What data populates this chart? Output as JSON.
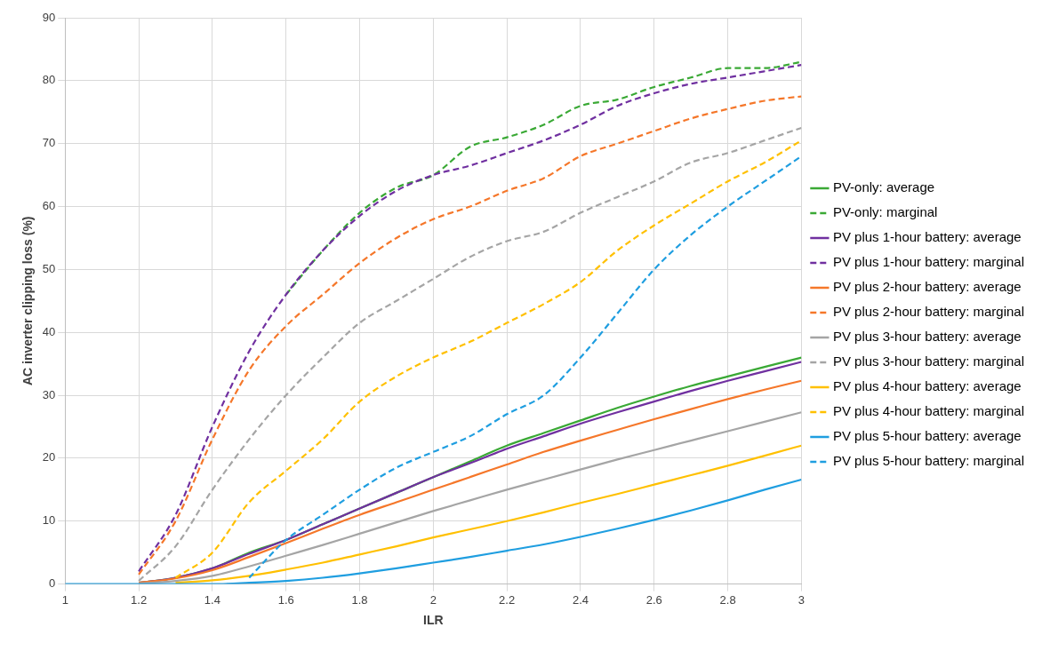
{
  "chart_data": {
    "type": "line",
    "xlabel": "ILR",
    "ylabel": "AC inverter clipping loss (%)",
    "x": [
      1,
      1.1,
      1.2,
      1.3,
      1.4,
      1.5,
      1.6,
      1.7,
      1.8,
      1.9,
      2,
      2.1,
      2.2,
      2.3,
      2.4,
      2.5,
      2.6,
      2.7,
      2.8,
      2.9,
      3
    ],
    "xlim": [
      1,
      3
    ],
    "xticks": [
      1,
      1.2,
      1.4,
      1.6,
      1.8,
      2,
      2.2,
      2.4,
      2.6,
      2.8,
      3
    ],
    "ylim": [
      0,
      90
    ],
    "yticks": [
      0,
      10,
      20,
      30,
      40,
      50,
      60,
      70,
      80,
      90
    ],
    "grid": true,
    "legend": "right",
    "marker": "none",
    "series": [
      {
        "name": "PV-only: average",
        "color": "#3aa935",
        "line_style": "solid",
        "values": [
          null,
          null,
          0.2,
          1,
          2.5,
          5,
          7,
          9.5,
          12,
          14.5,
          17,
          19.5,
          22,
          24,
          26,
          28,
          29.8,
          31.5,
          33,
          34.5,
          36
        ]
      },
      {
        "name": "PV-only: marginal",
        "color": "#3aa935",
        "line_style": "dashed",
        "values": [
          null,
          null,
          null,
          null,
          null,
          null,
          46,
          53,
          59,
          63,
          65,
          69.5,
          71,
          73,
          76,
          77,
          79,
          80.5,
          82,
          82,
          83
        ]
      },
      {
        "name": "PV plus 1-hour battery: average",
        "color": "#7030a0",
        "line_style": "solid",
        "values": [
          null,
          null,
          0.2,
          1,
          2.5,
          4.8,
          7,
          9.5,
          12,
          14.5,
          17,
          19.2,
          21.5,
          23.5,
          25.5,
          27.3,
          29,
          30.7,
          32.3,
          33.8,
          35.3
        ]
      },
      {
        "name": "PV plus 1-hour battery: marginal",
        "color": "#7030a0",
        "line_style": "dashed",
        "values": [
          null,
          null,
          2,
          11,
          25,
          37,
          46,
          53,
          58.5,
          62.5,
          65,
          66.5,
          68.5,
          70.5,
          73,
          76,
          78,
          79.5,
          80.5,
          81.5,
          82.5
        ]
      },
      {
        "name": "PV plus 2-hour battery: average",
        "color": "#f5772a",
        "line_style": "solid",
        "values": [
          null,
          null,
          0.2,
          0.9,
          2.2,
          4.3,
          6.5,
          8.8,
          11,
          13,
          15,
          17,
          19,
          21,
          22.8,
          24.5,
          26.2,
          27.8,
          29.4,
          30.9,
          32.3
        ]
      },
      {
        "name": "PV plus 2-hour battery: marginal",
        "color": "#f5772a",
        "line_style": "dashed",
        "values": [
          null,
          null,
          1.5,
          10,
          23,
          34,
          41,
          46,
          51,
          55,
          58,
          60,
          62.5,
          64.5,
          68,
          70,
          72,
          74,
          75.5,
          76.8,
          77.5
        ]
      },
      {
        "name": "PV plus 3-hour battery: average",
        "color": "#a5a5a5",
        "line_style": "solid",
        "values": [
          null,
          null,
          0.1,
          0.5,
          1.3,
          2.8,
          4.5,
          6.2,
          8,
          9.8,
          11.6,
          13.3,
          15,
          16.6,
          18.2,
          19.8,
          21.3,
          22.8,
          24.3,
          25.8,
          27.3
        ]
      },
      {
        "name": "PV plus 3-hour battery: marginal",
        "color": "#a5a5a5",
        "line_style": "dashed",
        "values": [
          null,
          null,
          0.5,
          6,
          15,
          23,
          30,
          36,
          41.5,
          45,
          48.5,
          52,
          54.5,
          56,
          59,
          61.5,
          64,
          67,
          68.5,
          70.5,
          72.5
        ]
      },
      {
        "name": "PV plus 4-hour battery: average",
        "color": "#ffc000",
        "line_style": "solid",
        "values": [
          null,
          null,
          null,
          0.2,
          0.6,
          1.3,
          2.3,
          3.4,
          4.7,
          6,
          7.4,
          8.7,
          10,
          11.4,
          12.9,
          14.3,
          15.8,
          17.3,
          18.8,
          20.4,
          22
        ]
      },
      {
        "name": "PV plus 4-hour battery: marginal",
        "color": "#ffc000",
        "line_style": "dashed",
        "values": [
          null,
          null,
          null,
          1,
          5,
          13,
          18,
          23,
          29,
          33,
          36,
          38.5,
          41.5,
          44.5,
          48,
          53,
          57,
          60.5,
          64,
          67,
          70.5
        ]
      },
      {
        "name": "PV plus 5-hour battery: average",
        "color": "#1f9ee0",
        "line_style": "solid",
        "values": [
          0,
          0,
          0,
          0,
          0,
          0.2,
          0.5,
          1,
          1.7,
          2.5,
          3.4,
          4.3,
          5.3,
          6.3,
          7.5,
          8.8,
          10.2,
          11.7,
          13.3,
          15,
          16.6
        ]
      },
      {
        "name": "PV plus 5-hour battery: marginal",
        "color": "#1f9ee0",
        "line_style": "dashed",
        "values": [
          null,
          null,
          null,
          null,
          null,
          1,
          7,
          11,
          15,
          18.5,
          21,
          23.5,
          27,
          30,
          36,
          43,
          50,
          55.5,
          60,
          64,
          68
        ]
      }
    ]
  }
}
